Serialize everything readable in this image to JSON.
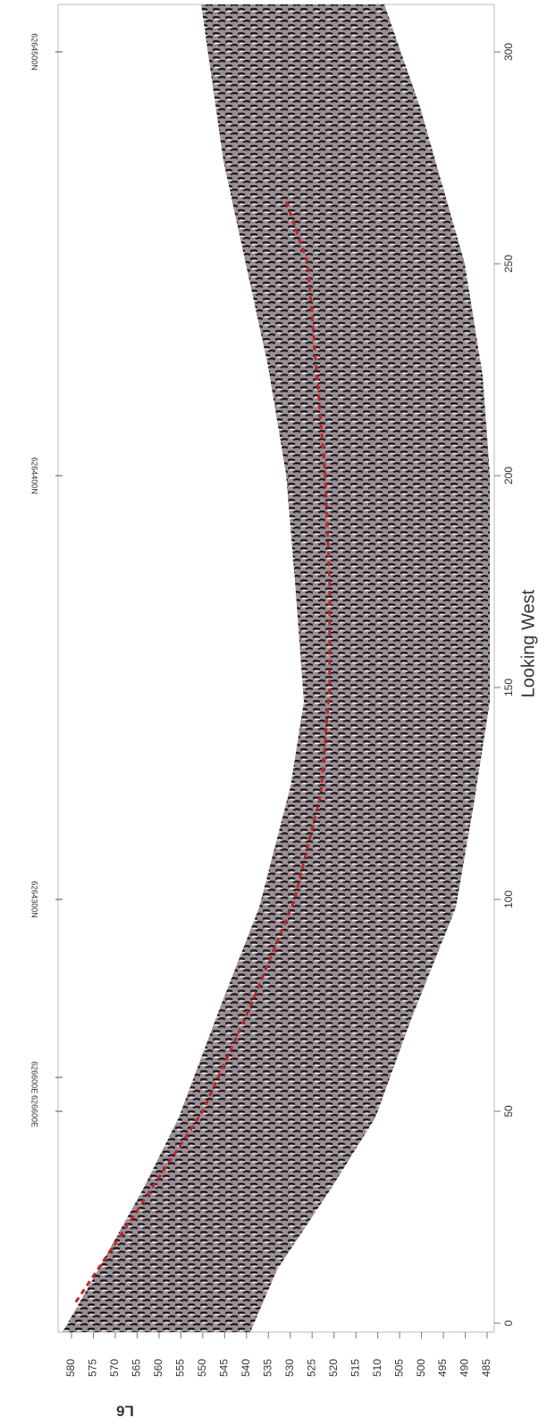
{
  "chart_data": {
    "type": "line",
    "x_label": "Looking West",
    "page_label": "L6",
    "x": [
      5,
      25,
      50,
      75,
      100,
      125,
      150,
      175,
      200,
      225,
      250,
      265
    ],
    "series": [
      {
        "color": "#c0262d",
        "values": [
          579,
          566,
          550,
          539,
          529,
          523,
          521,
          521,
          522,
          524,
          526,
          531
        ]
      }
    ],
    "xlim": [
      0,
      300
    ],
    "xticks": [
      0,
      50,
      100,
      150,
      200,
      250,
      300
    ],
    "ylim": [
      485,
      580
    ],
    "yticks": [
      580,
      575,
      570,
      565,
      560,
      555,
      550,
      545,
      540,
      535,
      530,
      525,
      520,
      515,
      510,
      505,
      500,
      495,
      490,
      485
    ],
    "annotations": [
      {
        "text": "626600E",
        "x": 50
      },
      {
        "text": "626600E",
        "x": 58
      },
      {
        "text": "6264300N",
        "x": 100
      },
      {
        "text": "6264400N",
        "x": 200
      },
      {
        "text": "6264500N",
        "x": 300
      }
    ]
  }
}
